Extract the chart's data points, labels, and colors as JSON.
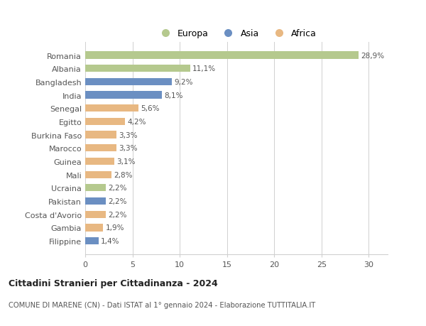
{
  "categories": [
    "Filippine",
    "Gambia",
    "Costa d'Avorio",
    "Pakistan",
    "Ucraina",
    "Mali",
    "Guinea",
    "Marocco",
    "Burkina Faso",
    "Egitto",
    "Senegal",
    "India",
    "Bangladesh",
    "Albania",
    "Romania"
  ],
  "values": [
    1.4,
    1.9,
    2.2,
    2.2,
    2.2,
    2.8,
    3.1,
    3.3,
    3.3,
    4.2,
    5.6,
    8.1,
    9.2,
    11.1,
    28.9
  ],
  "continents": [
    "Asia",
    "Africa",
    "Africa",
    "Asia",
    "Europa",
    "Africa",
    "Africa",
    "Africa",
    "Africa",
    "Africa",
    "Africa",
    "Asia",
    "Asia",
    "Europa",
    "Europa"
  ],
  "colors": {
    "Europa": "#b5c98e",
    "Asia": "#6b8fc2",
    "Africa": "#e8b882"
  },
  "label_values": [
    "1,4%",
    "1,9%",
    "2,2%",
    "2,2%",
    "2,2%",
    "2,8%",
    "3,1%",
    "3,3%",
    "3,3%",
    "4,2%",
    "5,6%",
    "8,1%",
    "9,2%",
    "11,1%",
    "28,9%"
  ],
  "title": "Cittadini Stranieri per Cittadinanza - 2024",
  "subtitle": "COMUNE DI MARENE (CN) - Dati ISTAT al 1° gennaio 2024 - Elaborazione TUTTITALIA.IT",
  "legend_labels": [
    "Europa",
    "Asia",
    "Africa"
  ],
  "xlim": [
    0,
    32
  ],
  "xticks": [
    0,
    5,
    10,
    15,
    20,
    25,
    30
  ],
  "background_color": "#ffffff",
  "grid_color": "#d0d0d0"
}
